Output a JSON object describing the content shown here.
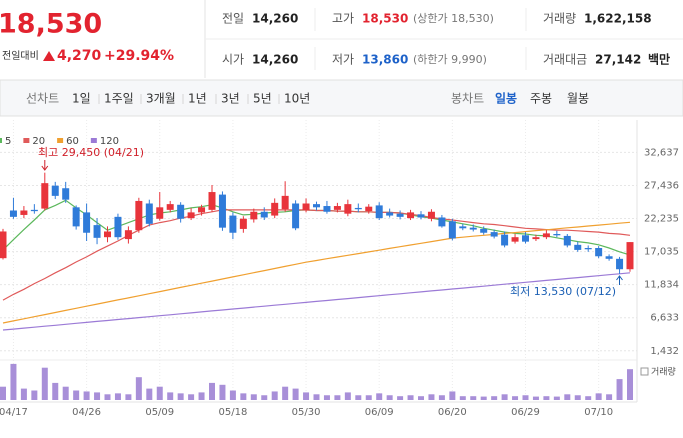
{
  "header": {
    "price": "18,530",
    "change_label": "전일대비",
    "change": "4,270",
    "change_rate": "+29.94%",
    "stats": [
      [
        {
          "label": "전일",
          "value": "14,260"
        },
        {
          "label": "고가",
          "value": "18,530",
          "note": "(상한가 18,530)",
          "color": "#e2232f"
        },
        {
          "label": "거래량",
          "value": "1,622,158"
        }
      ],
      [
        {
          "label": "시가",
          "value": "14,260"
        },
        {
          "label": "저가",
          "value": "13,860",
          "note": "(하한가 9,990)",
          "color": "#1e62c9"
        },
        {
          "label": "거래대금",
          "value": "27,142",
          "unit": "백만"
        }
      ]
    ]
  },
  "tabs": {
    "left": [
      "선차트",
      "1일",
      "1주일",
      "3개월",
      "1년",
      "3년",
      "5년",
      "10년"
    ],
    "right": [
      "봉차트",
      "일봉",
      "주봉",
      "월봉"
    ],
    "right_selected": 1
  },
  "chart_data": {
    "type": "candlestick",
    "categories": [
      null,
      "04/17",
      null,
      null,
      null,
      null,
      null,
      null,
      "04/26",
      null,
      null,
      null,
      null,
      null,
      null,
      "05/09",
      null,
      null,
      null,
      null,
      null,
      null,
      "05/18",
      null,
      null,
      null,
      null,
      null,
      null,
      "05/30",
      null,
      null,
      null,
      null,
      null,
      null,
      "06/09",
      null,
      null,
      null,
      null,
      null,
      null,
      "06/20",
      null,
      null,
      null,
      null,
      null,
      null,
      "06/29",
      null,
      null,
      null,
      null,
      null,
      null,
      "07/10",
      null,
      null,
      null
    ],
    "open": [
      16000,
      23500,
      22800,
      23600,
      23800,
      27400,
      27000,
      24000,
      23200,
      21200,
      19300,
      22500,
      19000,
      20400,
      24600,
      22200,
      23600,
      24400,
      22300,
      23200,
      23600,
      26000,
      22700,
      20600,
      22100,
      23300,
      22700,
      23700,
      24600,
      23500,
      24500,
      24200,
      23600,
      23000,
      23900,
      23400,
      24300,
      23200,
      23000,
      22300,
      22900,
      22200,
      22400,
      21800,
      21000,
      20800,
      20600,
      20100,
      19700,
      18600,
      19600,
      19000,
      19300,
      19800,
      19500,
      18100,
      17600,
      17600,
      16300,
      15900,
      14260
    ],
    "high": [
      20600,
      25500,
      24200,
      24500,
      29450,
      28000,
      28000,
      24300,
      24600,
      22300,
      21000,
      23000,
      21000,
      25500,
      25200,
      26400,
      25000,
      24800,
      23900,
      24400,
      27500,
      26500,
      23200,
      22600,
      23800,
      24000,
      25400,
      28100,
      25100,
      25400,
      24900,
      25000,
      24700,
      25200,
      24600,
      24500,
      24800,
      23800,
      23500,
      23600,
      23400,
      23700,
      22800,
      22200,
      21400,
      21300,
      21000,
      20500,
      20200,
      19800,
      20100,
      19700,
      20400,
      20300,
      19800,
      18600,
      18000,
      17900,
      16600,
      16200,
      18530
    ],
    "low": [
      15800,
      22200,
      22300,
      23000,
      23500,
      25300,
      24700,
      20500,
      18700,
      18200,
      18500,
      18900,
      18300,
      20000,
      21000,
      21900,
      23200,
      21600,
      22000,
      22700,
      23300,
      20300,
      19000,
      20000,
      21600,
      22000,
      22300,
      23300,
      20400,
      23200,
      23500,
      23000,
      23200,
      22600,
      23200,
      23000,
      22000,
      22400,
      22100,
      22000,
      22100,
      21800,
      20800,
      18800,
      20400,
      20200,
      19700,
      19100,
      17700,
      18300,
      18300,
      18700,
      19000,
      19300,
      17700,
      17000,
      17000,
      16000,
      15600,
      13530,
      13860
    ],
    "close": [
      20200,
      22500,
      23500,
      23400,
      27800,
      25800,
      25200,
      21000,
      20000,
      19200,
      20200,
      19300,
      20400,
      25000,
      21400,
      24000,
      24500,
      22200,
      23200,
      24000,
      26400,
      20800,
      20000,
      22200,
      23300,
      22400,
      24700,
      25800,
      20700,
      24600,
      24000,
      23300,
      24200,
      24500,
      23700,
      24100,
      22300,
      22700,
      22500,
      23200,
      22400,
      23300,
      21000,
      19100,
      20700,
      20500,
      20000,
      19400,
      18000,
      19300,
      18600,
      19300,
      19900,
      19600,
      18000,
      17300,
      17400,
      16300,
      15900,
      14260,
      18530
    ],
    "up_color": "#e8343b",
    "down_color": "#2f7bd9",
    "series": [
      {
        "name": "5",
        "color": "#5cb85c",
        "values": [
          17300,
          18900,
          20500,
          22000,
          23600,
          24300,
          25100,
          23900,
          22800,
          21600,
          20400,
          21000,
          21600,
          22200,
          22800,
          23100,
          23300,
          23600,
          23900,
          24100,
          24400,
          23900,
          23300,
          22800,
          22900,
          23100,
          23200,
          23300,
          23500,
          23600,
          23500,
          23500,
          23400,
          23400,
          23300,
          23300,
          23200,
          23200,
          23100,
          22800,
          22500,
          22300,
          22000,
          21700,
          21400,
          21100,
          20700,
          20400,
          20100,
          19900,
          19800,
          19600,
          19500,
          19200,
          18900,
          18600,
          18400,
          18100,
          17600,
          17000,
          16500
        ]
      },
      {
        "name": "20",
        "color": "#e05a5a",
        "values": [
          9400,
          10300,
          11100,
          12000,
          12800,
          13700,
          14500,
          15400,
          16200,
          17100,
          17900,
          18700,
          19600,
          20400,
          21200,
          21600,
          21900,
          22300,
          22600,
          23000,
          23300,
          23600,
          23600,
          23600,
          23600,
          23600,
          23600,
          23600,
          23600,
          23600,
          23500,
          23500,
          23400,
          23400,
          23300,
          23300,
          23200,
          23200,
          23100,
          22900,
          22700,
          22400,
          22200,
          22000,
          21800,
          21600,
          21400,
          21300,
          21100,
          20900,
          20700,
          20600,
          20500,
          20400,
          20400,
          20300,
          20200,
          20100,
          19900,
          19800,
          19600
        ]
      },
      {
        "name": "60",
        "color": "#f0a030",
        "values": [
          5800,
          6130,
          6460,
          6790,
          7120,
          7450,
          7780,
          8110,
          8440,
          8770,
          9100,
          9430,
          9760,
          10090,
          10420,
          10750,
          11080,
          11410,
          11740,
          12070,
          12400,
          12730,
          13060,
          13390,
          13720,
          14050,
          14380,
          14710,
          15040,
          15370,
          15640,
          15910,
          16180,
          16450,
          16720,
          16990,
          17260,
          17530,
          17800,
          18070,
          18340,
          18610,
          18880,
          19150,
          19300,
          19450,
          19600,
          19740,
          19890,
          20030,
          20180,
          20330,
          20470,
          20620,
          20770,
          20910,
          21060,
          21200,
          21350,
          21500,
          21640
        ]
      },
      {
        "name": "120",
        "color": "#9b7ad6",
        "values": [
          4700,
          4850,
          5000,
          5150,
          5300,
          5450,
          5600,
          5750,
          5900,
          6050,
          6200,
          6350,
          6500,
          6650,
          6800,
          6950,
          7100,
          7250,
          7400,
          7550,
          7700,
          7850,
          8000,
          8150,
          8300,
          8450,
          8600,
          8750,
          8900,
          9050,
          9200,
          9350,
          9500,
          9650,
          9800,
          9950,
          10100,
          10250,
          10400,
          10550,
          10700,
          10850,
          11000,
          11150,
          11300,
          11450,
          11600,
          11750,
          11900,
          12050,
          12200,
          12350,
          12500,
          12650,
          12800,
          12950,
          13100,
          13250,
          13400,
          13550,
          13700
        ]
      }
    ],
    "ylim": [
      300,
      33800
    ],
    "yticks": [
      {
        "value": 32637,
        "label": "32,637"
      },
      {
        "value": 27436,
        "label": "27,436"
      },
      {
        "value": 22235,
        "label": "22,235"
      },
      {
        "value": 17035,
        "label": "17,035"
      },
      {
        "value": 11834,
        "label": "11,834"
      },
      {
        "value": 6633,
        "label": "6,633"
      },
      {
        "value": 1432,
        "label": "1,432"
      }
    ],
    "grid": true,
    "annotations": [
      {
        "text": "최고 29,450 (04/21)",
        "color": "#d0202a"
      },
      {
        "text": "최저 13,530 (07/12)",
        "color": "#1a5fb4"
      }
    ],
    "volume": {
      "label": "거래량",
      "color": "#a88fd8",
      "ylim": [
        0,
        2000000
      ],
      "values": [
        700000,
        1900000,
        600000,
        500000,
        1700000,
        900000,
        700000,
        500000,
        450000,
        400000,
        300000,
        350000,
        300000,
        1200000,
        600000,
        700000,
        400000,
        350000,
        300000,
        400000,
        900000,
        800000,
        500000,
        350000,
        300000,
        250000,
        450000,
        700000,
        600000,
        400000,
        300000,
        250000,
        250000,
        400000,
        250000,
        250000,
        350000,
        250000,
        200000,
        250000,
        200000,
        300000,
        250000,
        450000,
        200000,
        200000,
        180000,
        200000,
        300000,
        200000,
        250000,
        180000,
        200000,
        180000,
        300000,
        250000,
        200000,
        350000,
        300000,
        1100000,
        1622158
      ]
    }
  }
}
